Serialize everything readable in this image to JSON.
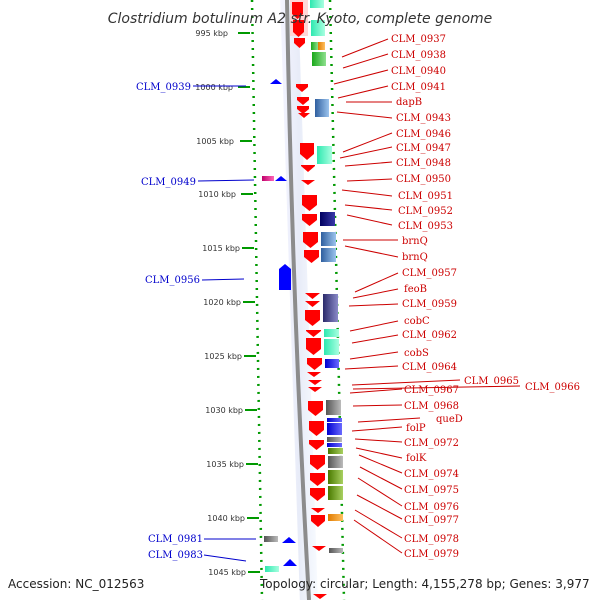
{
  "title": "Clostridium botulinum A2 str. Kyoto, complete genome",
  "footer": {
    "accession": "Accession: NC_012563",
    "topology": "Topology: circular; Length: 4,155,278 bp; Genes: 3,977"
  },
  "ticks": [
    "995 kbp",
    "1000 kbp",
    "1005 kbp",
    "1010 kbp",
    "1015 kbp",
    "1020 kbp",
    "1025 kbp",
    "1030 kbp",
    "1035 kbp",
    "1040 kbp",
    "1045 kbp"
  ],
  "labels_right": [
    "CLM_0937",
    "CLM_0938",
    "CLM_0940",
    "CLM_0941",
    "dapB",
    "CLM_0943",
    "CLM_0946",
    "CLM_0947",
    "CLM_0948",
    "CLM_0950",
    "CLM_0951",
    "CLM_0952",
    "CLM_0953",
    "brnQ",
    "brnQ",
    "CLM_0957",
    "feoB",
    "CLM_0959",
    "cobC",
    "CLM_0962",
    "cobS",
    "CLM_0964",
    "CLM_0965",
    "CLM_0966",
    "CLM_0967",
    "CLM_0968",
    "queD",
    "folP",
    "CLM_0972",
    "folK",
    "CLM_0974",
    "CLM_0975",
    "CLM_0976",
    "CLM_0977",
    "CLM_0978",
    "CLM_0979"
  ],
  "labels_left": [
    "CLM_0939",
    "CLM_0949",
    "CLM_0956",
    "CLM_0981",
    "CLM_0983"
  ],
  "colors": {
    "gene_red": "#ff0000",
    "gene_blue": "#0000ff",
    "label_red": "#cc0000",
    "label_blue": "#0000cc",
    "tick_green": "#008800",
    "backbone": "#888888"
  }
}
